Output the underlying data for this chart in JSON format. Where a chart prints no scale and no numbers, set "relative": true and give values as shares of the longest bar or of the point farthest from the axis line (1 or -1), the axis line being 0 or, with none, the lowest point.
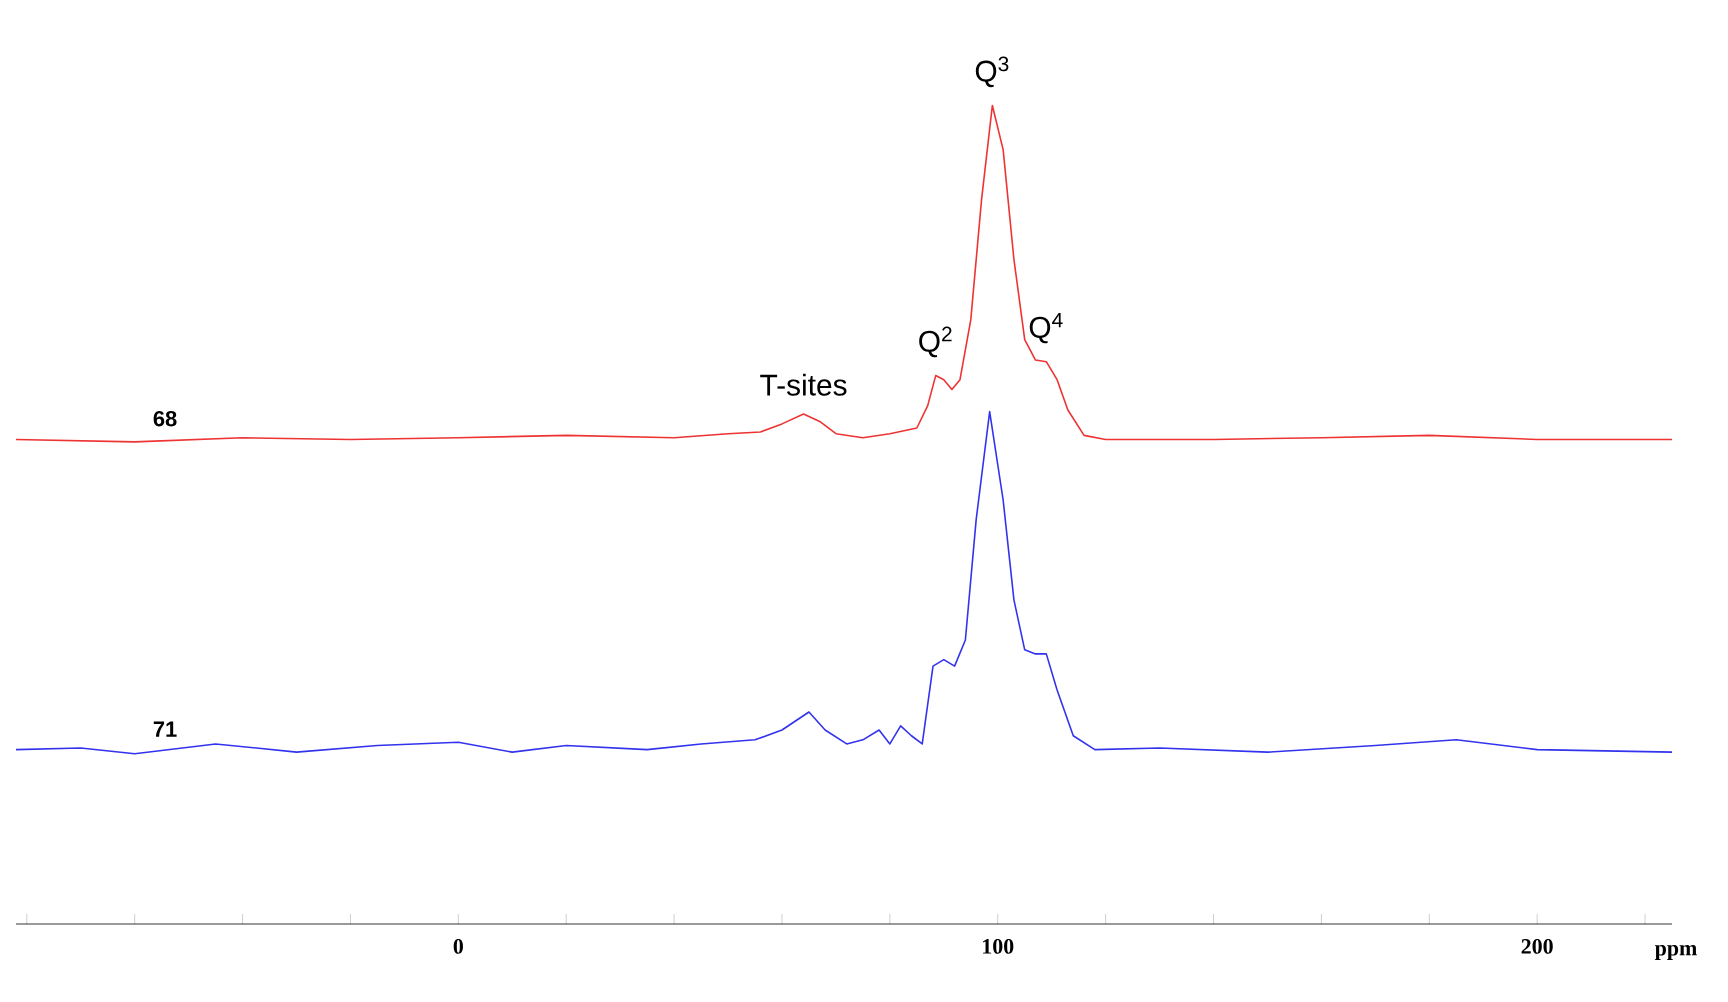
{
  "chart_data": {
    "type": "line",
    "relative": true,
    "xlabel": "ppm",
    "xlim": [
      -82,
      225
    ],
    "xticks": [
      {
        "value": -80,
        "label": null
      },
      {
        "value": -60,
        "label": null
      },
      {
        "value": -40,
        "label": null
      },
      {
        "value": -20,
        "label": null
      },
      0,
      {
        "value": 20,
        "label": null
      },
      {
        "value": 40,
        "label": null
      },
      {
        "value": 60,
        "label": null
      },
      {
        "value": 80,
        "label": null
      },
      100,
      {
        "value": 120,
        "label": null
      },
      {
        "value": 140,
        "label": null
      },
      {
        "value": 160,
        "label": null
      },
      {
        "value": 180,
        "label": null
      },
      200,
      {
        "value": 220,
        "label": null
      }
    ],
    "series": [
      {
        "name": "68",
        "color": "#ee3333",
        "x": [
          -82,
          -60,
          -40,
          -20,
          0,
          20,
          40,
          50,
          56,
          60,
          64,
          67,
          70,
          75,
          80,
          85,
          87,
          88.5,
          90,
          91.5,
          93,
          95,
          97,
          99,
          101,
          103,
          105,
          107,
          109,
          111,
          113,
          116,
          120,
          140,
          160,
          180,
          200,
          225
        ],
        "values": [
          0.592,
          0.589,
          0.594,
          0.592,
          0.594,
          0.597,
          0.594,
          0.599,
          0.601,
          0.611,
          0.623,
          0.614,
          0.599,
          0.594,
          0.599,
          0.606,
          0.633,
          0.67,
          0.665,
          0.653,
          0.665,
          0.738,
          0.885,
          1.0,
          0.946,
          0.812,
          0.714,
          0.689,
          0.687,
          0.665,
          0.628,
          0.597,
          0.592,
          0.592,
          0.594,
          0.597,
          0.592,
          0.592
        ]
      },
      {
        "name": "71",
        "color": "#3333ee",
        "x": [
          -82,
          -70,
          -60,
          -45,
          -30,
          -15,
          0,
          10,
          20,
          35,
          45,
          55,
          60,
          65,
          68,
          72,
          75,
          78,
          80,
          82,
          84,
          86,
          88,
          90,
          92,
          94,
          96,
          98.5,
          101,
          103,
          105,
          107,
          109,
          111,
          114,
          118,
          130,
          150,
          170,
          185,
          200,
          225
        ],
        "values": [
          0.213,
          0.215,
          0.208,
          0.22,
          0.21,
          0.218,
          0.222,
          0.21,
          0.218,
          0.213,
          0.22,
          0.225,
          0.237,
          0.259,
          0.237,
          0.22,
          0.225,
          0.237,
          0.22,
          0.242,
          0.23,
          0.22,
          0.315,
          0.323,
          0.315,
          0.347,
          0.494,
          0.626,
          0.518,
          0.396,
          0.335,
          0.33,
          0.33,
          0.286,
          0.23,
          0.213,
          0.215,
          0.21,
          0.218,
          0.225,
          0.213,
          0.21
        ]
      }
    ],
    "annotations": [
      {
        "text": "T-sites",
        "x": 64,
        "y": 0.623
      },
      {
        "text": "Q$^{2}$",
        "x": 88.5,
        "y": 0.67
      },
      {
        "text": "Q$^{3}$",
        "x": 99,
        "y": 1.0
      },
      {
        "text": "Q$^{4}$",
        "x": 109,
        "y": 0.687
      }
    ]
  }
}
